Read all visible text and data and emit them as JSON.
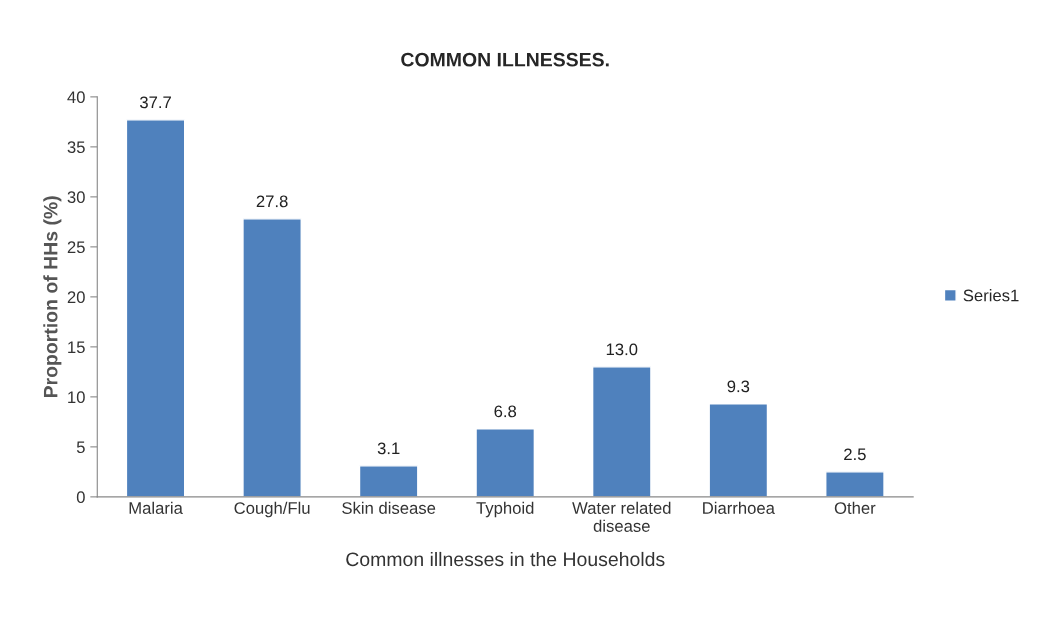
{
  "chart_data": {
    "type": "bar",
    "title": "COMMON ILLNESSES.",
    "xlabel": "Common illnesses in the Households",
    "ylabel": "Proportion of HHs (%)",
    "categories": [
      "Malaria",
      "Cough/Flu",
      "Skin disease",
      "Typhoid",
      "Water related disease",
      "Diarrhoea",
      "Other"
    ],
    "series": [
      {
        "name": "Series1",
        "color": "#4f81bd",
        "values": [
          37.7,
          27.8,
          3.1,
          6.8,
          13.0,
          9.3,
          2.5
        ],
        "value_labels": [
          "37.7",
          "27.8",
          "3.1",
          "6.8",
          "13.0",
          "9.3",
          "2.5"
        ]
      }
    ],
    "ylim": [
      0,
      40
    ],
    "yticks": [
      0,
      5,
      10,
      15,
      20,
      25,
      30,
      35,
      40
    ],
    "grid": false,
    "legend": "right"
  }
}
